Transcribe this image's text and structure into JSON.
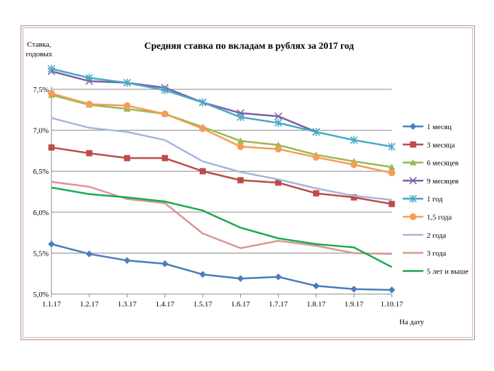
{
  "chart_data": {
    "type": "line",
    "title": "Средняя ставка по вкладам в рублях за 2017 год",
    "ylabel": [
      "Ставка,",
      "годовых"
    ],
    "xlabel": "На дату",
    "ylim": [
      5.0,
      7.5
    ],
    "ytick_values": [
      5.0,
      5.5,
      6.0,
      6.5,
      7.0,
      7.5
    ],
    "ytick_labels": [
      "5,0%",
      "5,5%",
      "6,0%",
      "6,5%",
      "7,0%",
      "7,5%"
    ],
    "categories": [
      "1.1.17",
      "1.2.17",
      "1.3.17",
      "1.4.17",
      "1.5.17",
      "1.6.17",
      "1.7.17",
      "1.8.17",
      "1.9.17",
      "1.10.17"
    ],
    "grid": true,
    "legend": "right",
    "series": [
      {
        "name": "1 месяц",
        "color": "#4a7ebb",
        "marker": "diamond",
        "values": [
          5.61,
          5.49,
          5.41,
          5.37,
          5.24,
          5.19,
          5.21,
          5.1,
          5.06,
          5.05
        ]
      },
      {
        "name": "3 месяца",
        "color": "#be4b48",
        "marker": "square",
        "values": [
          6.79,
          6.72,
          6.66,
          6.66,
          6.5,
          6.39,
          6.36,
          6.23,
          6.18,
          6.1
        ]
      },
      {
        "name": "6 месяцев",
        "color": "#98b954",
        "marker": "triangle",
        "values": [
          7.43,
          7.31,
          7.26,
          7.2,
          7.04,
          6.87,
          6.82,
          6.7,
          6.62,
          6.55
        ]
      },
      {
        "name": "9 месяцев",
        "color": "#7d5fa0",
        "marker": "x",
        "values": [
          7.72,
          7.6,
          7.58,
          7.52,
          7.34,
          7.21,
          7.17,
          6.98,
          null,
          null
        ]
      },
      {
        "name": "1 год",
        "color": "#46aac5",
        "marker": "star",
        "values": [
          7.75,
          7.64,
          7.58,
          7.49,
          7.34,
          7.16,
          7.09,
          6.98,
          6.88,
          6.8
        ]
      },
      {
        "name": "1,5 года",
        "color": "#f59d56",
        "marker": "circle",
        "values": [
          7.45,
          7.32,
          7.3,
          7.2,
          7.02,
          6.8,
          6.77,
          6.67,
          6.58,
          6.48
        ]
      },
      {
        "name": "2 года",
        "color": "#a4b6dd",
        "marker": "none",
        "values": [
          7.15,
          7.03,
          6.98,
          6.88,
          6.62,
          6.49,
          6.4,
          6.29,
          6.2,
          6.15
        ]
      },
      {
        "name": "3 года",
        "color": "#d99694",
        "marker": "none",
        "values": [
          6.37,
          6.31,
          6.16,
          6.11,
          5.74,
          5.56,
          5.65,
          5.59,
          5.5,
          5.49
        ]
      },
      {
        "name": "5 лет и выше",
        "color": "#1bab4f",
        "marker": "none",
        "values": [
          6.3,
          6.22,
          6.18,
          6.13,
          6.02,
          5.81,
          5.68,
          5.61,
          5.57,
          5.33
        ]
      }
    ]
  }
}
